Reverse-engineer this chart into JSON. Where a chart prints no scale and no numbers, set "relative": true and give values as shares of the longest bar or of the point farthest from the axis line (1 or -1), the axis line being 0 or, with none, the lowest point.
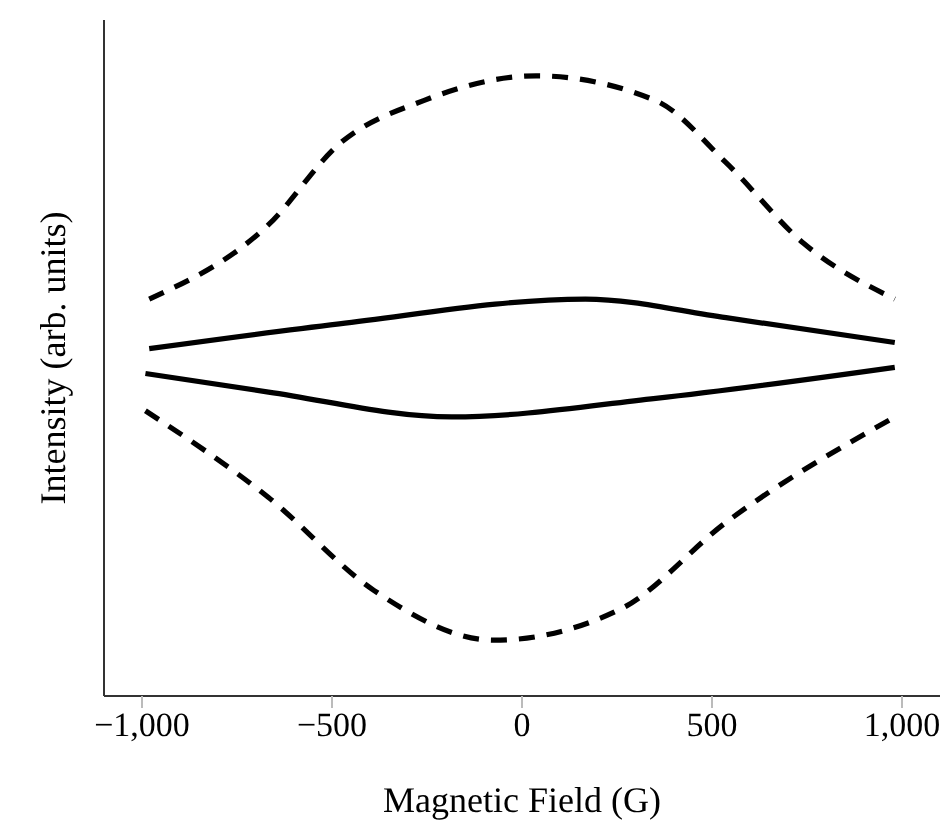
{
  "chart_data": {
    "type": "line",
    "relative": true,
    "xlabel": "Magnetic Field (G)",
    "ylabel": "Intensity (arb. units)",
    "xlim": [
      -1100,
      1100
    ],
    "xticks": [
      {
        "value": -1000,
        "label": "−1,000"
      },
      {
        "value": -500,
        "label": "−500"
      },
      0,
      500,
      {
        "value": 1000,
        "label": "1,000"
      }
    ],
    "grid": false,
    "legend": false,
    "marker": "none",
    "series": [
      {
        "color": "#000000",
        "line_style": "dashed",
        "x": [
          -981,
          -667,
          -481,
          -259,
          37,
          352,
          537,
          741,
          981
        ],
        "values": [
          0.64,
          0.76,
          0.89,
          0.96,
          1.0,
          0.96,
          0.86,
          0.73,
          0.64
        ]
      },
      {
        "color": "#000000",
        "line_style": "solid",
        "x": [
          -981,
          -481,
          167,
          537,
          981
        ],
        "values": [
          0.56,
          0.6,
          0.64,
          0.61,
          0.57
        ]
      },
      {
        "color": "#000000",
        "line_style": "solid",
        "x": [
          -991,
          -667,
          -185,
          352,
          981
        ],
        "values": [
          0.52,
          0.49,
          0.45,
          0.48,
          0.53
        ]
      },
      {
        "color": "#000000",
        "line_style": "dashed",
        "x": [
          -991,
          -667,
          -389,
          -74,
          259,
          537,
          981
        ],
        "values": [
          0.46,
          0.32,
          0.17,
          0.09,
          0.14,
          0.28,
          0.45
        ]
      }
    ]
  }
}
